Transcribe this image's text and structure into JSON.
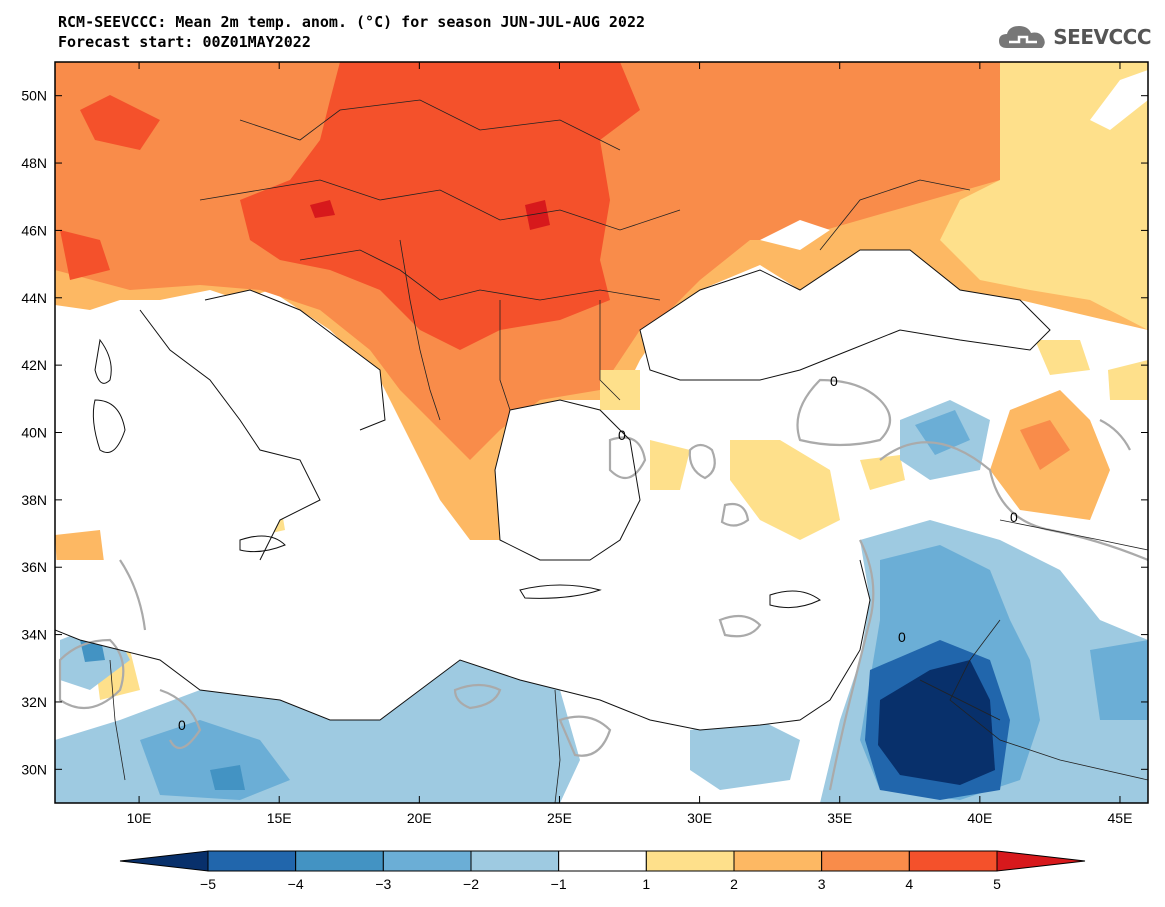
{
  "header": {
    "title": "RCM-SEEVCCC: Mean 2m temp. anom. (°C) for season JUN-JUL-AUG 2022",
    "subtitle": "Forecast start: 00Z01MAY2022",
    "logo_text": "SEEVCCC",
    "logo_icon": "cloud-icon"
  },
  "map": {
    "region": "Southeast Europe / Eastern Mediterranean",
    "lon_range": [
      7,
      46
    ],
    "lat_range": [
      29,
      51
    ],
    "x_ticks": [
      "10E",
      "15E",
      "20E",
      "25E",
      "30E",
      "35E",
      "40E",
      "45E"
    ],
    "x_tick_values": [
      10,
      15,
      20,
      25,
      30,
      35,
      40,
      45
    ],
    "y_ticks": [
      "50N",
      "48N",
      "46N",
      "44N",
      "42N",
      "40N",
      "38N",
      "36N",
      "34N",
      "32N",
      "30N"
    ],
    "y_tick_values": [
      50,
      48,
      46,
      44,
      42,
      40,
      38,
      36,
      34,
      32,
      30
    ],
    "contour_label": "0"
  },
  "colorbar": {
    "levels": [
      "-5",
      "-4",
      "-3",
      "-2",
      "-1",
      "1",
      "2",
      "3",
      "4",
      "5"
    ],
    "colors": [
      "#08306b",
      "#2166ac",
      "#4393c3",
      "#6baed6",
      "#9ecae1",
      "#ffffff",
      "#fee08b",
      "#fdb863",
      "#f98c4a",
      "#f4512b",
      "#d7191c"
    ]
  }
}
